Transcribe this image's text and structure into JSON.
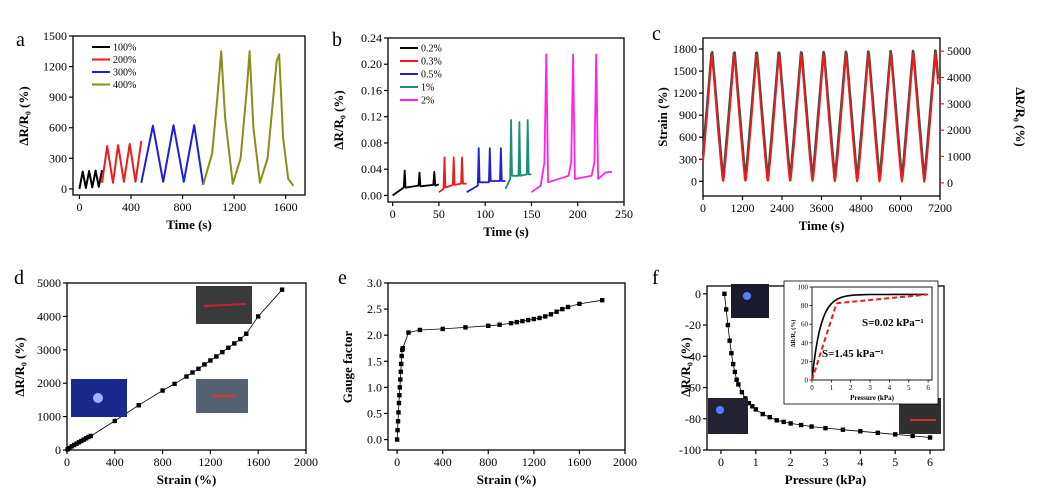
{
  "chart_data": [
    {
      "id": "a",
      "type": "line",
      "panel_letter": "a",
      "xlabel": "Time (s)",
      "ylabel": "ΔR/R₀ (%)",
      "xlim": [
        -50,
        1750
      ],
      "ylim": [
        -60,
        1500
      ],
      "xticks": [
        0,
        400,
        800,
        1200,
        1600
      ],
      "yticks": [
        0,
        300,
        600,
        900,
        1200,
        1500
      ],
      "legend_position": "top-left",
      "series": [
        {
          "name": "100%",
          "color": "#000000",
          "x": [
            0,
            25,
            50,
            75,
            100,
            125,
            150,
            175
          ],
          "y": [
            0,
            170,
            10,
            175,
            15,
            180,
            20,
            185
          ]
        },
        {
          "name": "200%",
          "color": "#ee1c1c",
          "x": [
            175,
            215,
            260,
            300,
            345,
            390,
            435,
            480
          ],
          "y": [
            60,
            420,
            60,
            430,
            70,
            440,
            70,
            470
          ]
        },
        {
          "name": "300%",
          "color": "#1f1fd6",
          "x": [
            480,
            570,
            650,
            730,
            810,
            890,
            960
          ],
          "y": [
            60,
            620,
            70,
            625,
            70,
            625,
            40
          ]
        },
        {
          "name": "400%",
          "color": "#8c8c1c",
          "x": [
            960,
            1030,
            1070,
            1100,
            1130,
            1190,
            1250,
            1300,
            1320,
            1350,
            1400,
            1460,
            1530,
            1550,
            1580,
            1620,
            1660
          ],
          "y": [
            40,
            350,
            900,
            1350,
            700,
            50,
            300,
            1000,
            1350,
            600,
            60,
            300,
            1250,
            1320,
            500,
            100,
            30
          ]
        }
      ]
    },
    {
      "id": "b",
      "type": "line",
      "panel_letter": "b",
      "xlabel": "Time (s)",
      "ylabel": "ΔR/R₀ (%)",
      "xlim": [
        -5,
        250
      ],
      "ylim": [
        -0.01,
        0.24
      ],
      "xticks": [
        0,
        50,
        100,
        150,
        200,
        250
      ],
      "yticks": [
        0.0,
        0.04,
        0.08,
        0.12,
        0.16,
        0.2,
        0.24
      ],
      "legend_position": "top-left",
      "series": [
        {
          "name": "0.2%",
          "color": "#000000",
          "x": [
            0,
            12,
            13,
            14,
            28,
            29,
            30,
            44,
            45,
            46,
            50
          ],
          "y": [
            0,
            0.012,
            0.038,
            0.012,
            0.015,
            0.035,
            0.014,
            0.016,
            0.036,
            0.015,
            0.017
          ]
        },
        {
          "name": "0.3%",
          "color": "#ee1c1c",
          "x": [
            50,
            55,
            56,
            57,
            65,
            66,
            67,
            74,
            75,
            76,
            80
          ],
          "y": [
            0.005,
            0.01,
            0.058,
            0.012,
            0.016,
            0.058,
            0.016,
            0.018,
            0.058,
            0.018,
            0.018
          ]
        },
        {
          "name": "0.5%",
          "color": "#1f1fd6",
          "x": [
            80,
            92,
            93,
            94,
            104,
            105,
            106,
            116,
            117,
            118,
            122
          ],
          "y": [
            0.005,
            0.015,
            0.072,
            0.02,
            0.02,
            0.072,
            0.022,
            0.022,
            0.072,
            0.022,
            0.022
          ]
        },
        {
          "name": "1%",
          "color": "#1f8c82",
          "x": [
            122,
            127,
            128,
            129,
            136,
            137,
            138,
            145,
            146,
            147,
            150
          ],
          "y": [
            0.01,
            0.025,
            0.115,
            0.03,
            0.03,
            0.112,
            0.03,
            0.032,
            0.115,
            0.032,
            0.032
          ]
        },
        {
          "name": "2%",
          "color": "#ff22ee",
          "x": [
            150,
            160,
            164,
            166,
            168,
            190,
            193,
            195,
            197,
            215,
            218,
            220,
            222,
            230,
            237
          ],
          "y": [
            0.005,
            0.015,
            0.05,
            0.215,
            0.02,
            0.03,
            0.05,
            0.215,
            0.025,
            0.03,
            0.05,
            0.215,
            0.025,
            0.035,
            0.036
          ]
        }
      ]
    },
    {
      "id": "c",
      "type": "line",
      "panel_letter": "c",
      "xlabel": "Time (s)",
      "ylabel": "Strain (%)",
      "ylabel_right": "ΔR/R₀ (%)",
      "xlim": [
        0,
        7200
      ],
      "ylim": [
        -200,
        1950
      ],
      "ylim_right": [
        -500,
        5500
      ],
      "xticks": [
        0,
        1200,
        2400,
        3600,
        4800,
        6000,
        7200
      ],
      "yticks": [
        0,
        300,
        600,
        900,
        1200,
        1500,
        1800
      ],
      "yticks_right": [
        0,
        1000,
        2000,
        3000,
        4000,
        5000
      ],
      "cycles": 11,
      "series": [
        {
          "name": "Strain",
          "color": "#4a4a4a",
          "amplitude": 1800
        },
        {
          "name": "ΔR/R₀",
          "color": "#ee1c1c",
          "amplitude": 5000
        }
      ]
    },
    {
      "id": "d",
      "type": "scatter",
      "panel_letter": "d",
      "xlabel": "Strain (%)",
      "ylabel": "ΔR/R₀ (%)",
      "xlim": [
        0,
        2000
      ],
      "ylim": [
        0,
        5000
      ],
      "xticks": [
        0,
        400,
        800,
        1200,
        1600,
        2000
      ],
      "yticks": [
        0,
        1000,
        2000,
        3000,
        4000,
        5000
      ],
      "x": [
        5,
        20,
        40,
        60,
        80,
        100,
        120,
        140,
        160,
        180,
        200,
        400,
        600,
        800,
        900,
        1000,
        1050,
        1100,
        1150,
        1200,
        1250,
        1300,
        1350,
        1400,
        1450,
        1500,
        1600,
        1800
      ],
      "y": [
        20,
        60,
        110,
        150,
        190,
        230,
        270,
        310,
        350,
        390,
        420,
        870,
        1340,
        1780,
        1980,
        2200,
        2320,
        2430,
        2560,
        2680,
        2800,
        2930,
        3060,
        3190,
        3320,
        3480,
        4000,
        4800
      ]
    },
    {
      "id": "e",
      "type": "scatter",
      "panel_letter": "e",
      "xlabel": "Strain (%)",
      "ylabel": "Gauge factor",
      "xlim": [
        -80,
        2000
      ],
      "ylim": [
        -0.2,
        3.0
      ],
      "xticks": [
        0,
        400,
        800,
        1200,
        1600,
        2000
      ],
      "yticks": [
        0.0,
        0.5,
        1.0,
        1.5,
        2.0,
        2.5,
        3.0
      ],
      "x": [
        0,
        4,
        8,
        12,
        16,
        20,
        24,
        28,
        32,
        36,
        40,
        45,
        50,
        100,
        200,
        400,
        600,
        800,
        900,
        1000,
        1050,
        1100,
        1150,
        1200,
        1250,
        1300,
        1350,
        1400,
        1450,
        1500,
        1600,
        1800
      ],
      "y": [
        0.0,
        0.18,
        0.35,
        0.52,
        0.7,
        0.85,
        1.0,
        1.15,
        1.3,
        1.45,
        1.6,
        1.72,
        1.75,
        2.05,
        2.1,
        2.12,
        2.15,
        2.18,
        2.2,
        2.23,
        2.25,
        2.27,
        2.29,
        2.31,
        2.33,
        2.36,
        2.4,
        2.45,
        2.5,
        2.54,
        2.6,
        2.67
      ]
    },
    {
      "id": "f",
      "type": "scatter",
      "panel_letter": "f",
      "xlabel": "Pressure (kPa)",
      "ylabel": "ΔR/R₀ (%)",
      "xlim": [
        -0.4,
        6.4
      ],
      "ylim": [
        -100,
        5
      ],
      "xticks": [
        0,
        1,
        2,
        3,
        4,
        5,
        6
      ],
      "yticks": [
        0,
        -20,
        -40,
        -60,
        -80,
        -100
      ],
      "x": [
        0.1,
        0.15,
        0.2,
        0.25,
        0.3,
        0.35,
        0.4,
        0.45,
        0.5,
        0.6,
        0.7,
        0.8,
        0.9,
        1.0,
        1.2,
        1.4,
        1.6,
        1.8,
        2.0,
        2.3,
        2.6,
        3.0,
        3.5,
        4.0,
        4.5,
        5.0,
        5.5,
        6.0
      ],
      "y": [
        0,
        -10,
        -20,
        -30,
        -38,
        -45,
        -50,
        -55,
        -58,
        -63,
        -67,
        -70,
        -72,
        -74,
        -77,
        -79,
        -81,
        -82,
        -83,
        -84,
        -85,
        -86,
        -87,
        -88,
        -89,
        -90,
        -91,
        -92
      ],
      "inset": {
        "xlabel": "Pressure (kPa)",
        "ylabel": "ΔR/R₀ (%)",
        "xlim": [
          0,
          6.2
        ],
        "ylim": [
          0,
          100
        ],
        "xticks": [
          0,
          1,
          2,
          3,
          4,
          5,
          6
        ],
        "yticks": [
          0,
          20,
          40,
          60,
          80,
          100
        ],
        "annotations": [
          "S=0.02 kPa⁻¹",
          "S=1.45 kPa⁻¹"
        ],
        "curve_color": "#000000",
        "fit_color": "#ee1c1c"
      }
    }
  ]
}
